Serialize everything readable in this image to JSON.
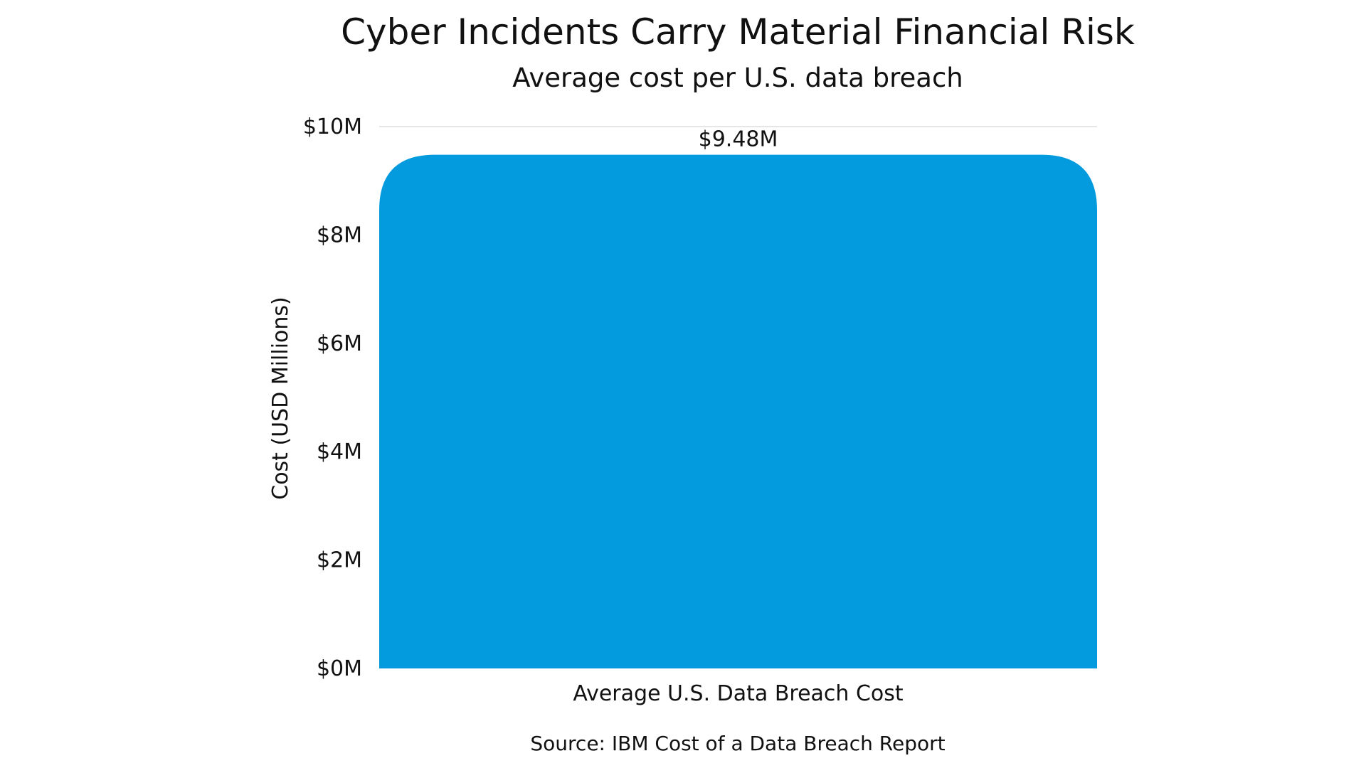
{
  "chart_data": {
    "type": "bar",
    "title": "Cyber Incidents Carry Material Financial Risk",
    "subtitle": "Average cost per U.S. data breach",
    "categories": [
      "Average U.S. Data Breach Cost"
    ],
    "values": [
      9.48
    ],
    "data_labels": [
      "$9.48M"
    ],
    "xlabel": "",
    "ylabel": "Cost (USD Millions)",
    "ylim": [
      0,
      10
    ],
    "yticks": [
      0,
      2,
      4,
      6,
      8,
      10
    ],
    "ytick_labels": [
      "$0M",
      "$2M",
      "$4M",
      "$6M",
      "$8M",
      "$10M"
    ],
    "grid": true,
    "legend": "none",
    "source": "Source: IBM Cost of a Data Breach Report",
    "colors": {
      "bar": "#039BDD",
      "grid": "#DDDDDD",
      "text": "#111111"
    }
  }
}
